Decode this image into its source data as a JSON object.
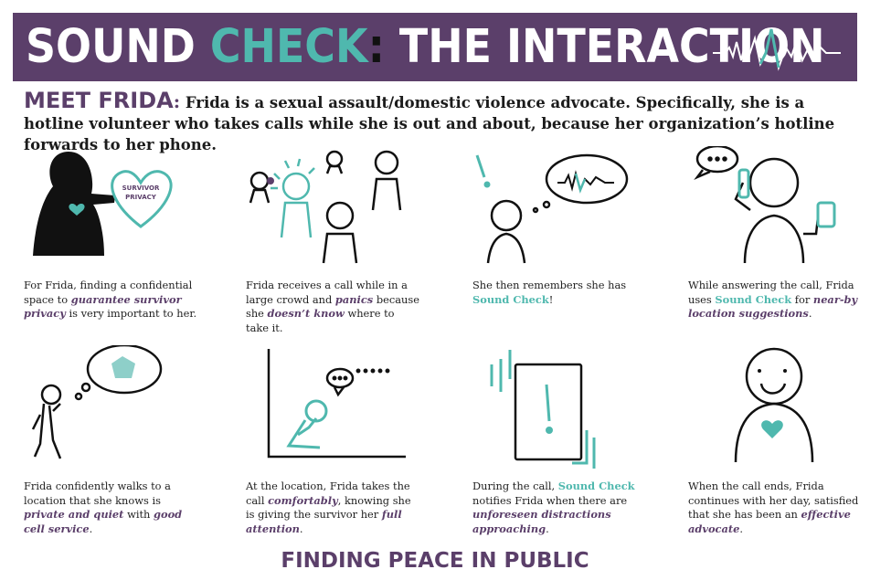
{
  "banner": {
    "title_part1": "SOUND ",
    "title_part2": "CHECK",
    "title_colon": ":",
    "title_part3": " THE INTERACTION",
    "wave_icon": "heartbeat-wave"
  },
  "intro": {
    "label": "MEET FRIDA",
    "colon": ":",
    "text": " Frida is a sexual assault/domestic violence advocate. Specifically, she is a hotline volunteer who takes calls while she is out and about, because her organization’s hotline forwards to her phone."
  },
  "panels": [
    {
      "illustration_label": "SURVIVOR PRIVACY",
      "caption": [
        {
          "t": "For Frida, finding a confidential space to ",
          "s": "n"
        },
        {
          "t": "guarantee survivor privacy",
          "s": "h"
        },
        {
          "t": " is very important to her.",
          "s": "n"
        }
      ]
    },
    {
      "caption": [
        {
          "t": "Frida receives a call while in a large crowd and ",
          "s": "n"
        },
        {
          "t": "panics",
          "s": "h"
        },
        {
          "t": " because she ",
          "s": "n"
        },
        {
          "t": "doesn’t know",
          "s": "h"
        },
        {
          "t": " where to take it.",
          "s": "n"
        }
      ]
    },
    {
      "caption": [
        {
          "t": "She then remembers she has ",
          "s": "n"
        },
        {
          "t": "Sound Check",
          "s": "t"
        },
        {
          "t": "!",
          "s": "n"
        }
      ]
    },
    {
      "caption": [
        {
          "t": "While answering the call, Frida uses ",
          "s": "n"
        },
        {
          "t": "Sound Check",
          "s": "t"
        },
        {
          "t": " for ",
          "s": "n"
        },
        {
          "t": "near-by location suggestions",
          "s": "h"
        },
        {
          "t": ".",
          "s": "n"
        }
      ]
    },
    {
      "caption": [
        {
          "t": "Frida confidently walks to a location that she knows is ",
          "s": "n"
        },
        {
          "t": "private and quiet",
          "s": "h"
        },
        {
          "t": " with ",
          "s": "n"
        },
        {
          "t": "good cell service",
          "s": "h"
        },
        {
          "t": ".",
          "s": "n"
        }
      ]
    },
    {
      "caption": [
        {
          "t": "At the location, Frida takes the call ",
          "s": "n"
        },
        {
          "t": "comfortably",
          "s": "h"
        },
        {
          "t": ", knowing she is giving the survivor her ",
          "s": "n"
        },
        {
          "t": "full attention",
          "s": "h"
        },
        {
          "t": ".",
          "s": "n"
        }
      ]
    },
    {
      "caption": [
        {
          "t": "During the call, ",
          "s": "n"
        },
        {
          "t": "Sound Check",
          "s": "t"
        },
        {
          "t": " notifies Frida when there are ",
          "s": "n"
        },
        {
          "t": "unforeseen distractions approaching",
          "s": "h"
        },
        {
          "t": ".",
          "s": "n"
        }
      ]
    },
    {
      "caption": [
        {
          "t": "When the call ends, Frida continues with her day, satisfied that she has been an ",
          "s": "n"
        },
        {
          "t": "effective advocate",
          "s": "h"
        },
        {
          "t": ".",
          "s": "n"
        }
      ]
    }
  ],
  "footer": {
    "text": "FINDING PEACE IN PUBLIC"
  },
  "colors": {
    "purple": "#5b3f6a",
    "teal": "#4fb8ae",
    "ink": "#111111"
  }
}
